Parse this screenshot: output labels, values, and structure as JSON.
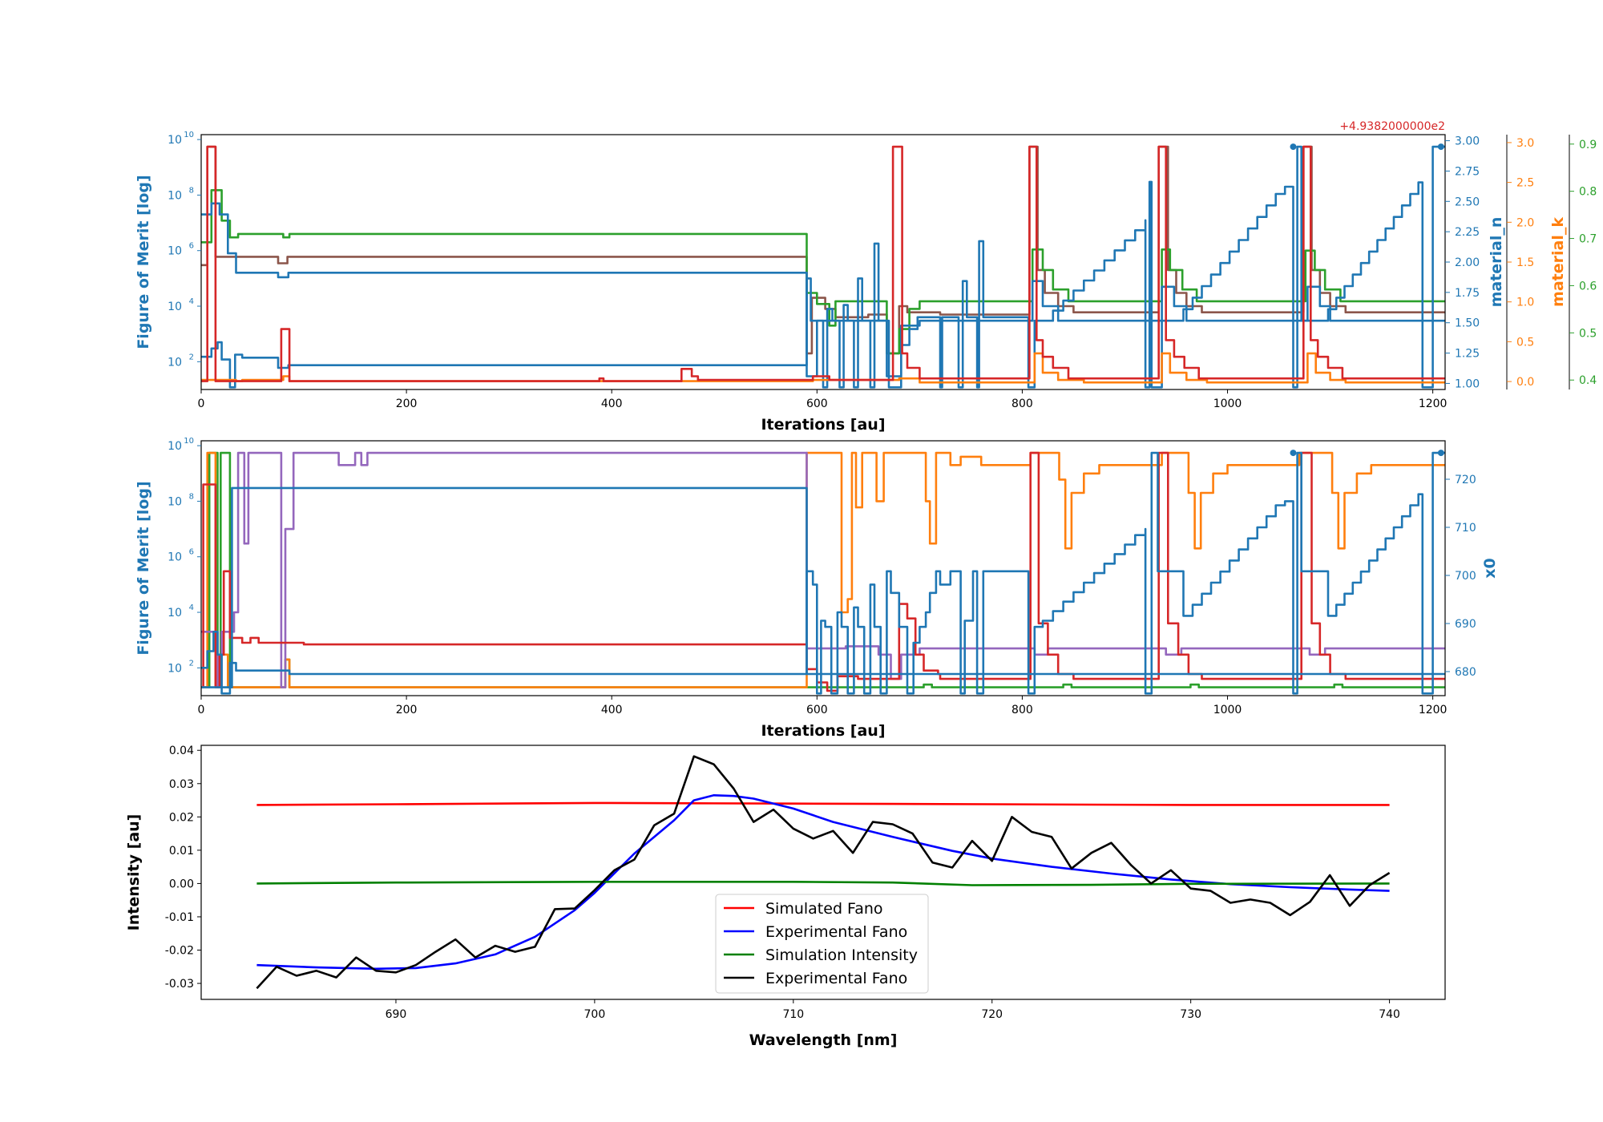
{
  "colors": {
    "blue": "#1f77b4",
    "orange": "#ff7f0e",
    "green": "#2ca02c",
    "red": "#d62728",
    "purple": "#9467bd",
    "brown": "#8c564b",
    "pure_red": "#ff0000",
    "pure_blue": "#0000ff",
    "dark_green": "#008000",
    "black": "#000000"
  },
  "chart_data": [
    {
      "type": "line",
      "step": true,
      "xlabel": "Iterations [au]",
      "ylabel": "Figure of Merit [log]",
      "xlim": [
        0,
        1212
      ],
      "ylim_log": [
        10.0,
        15000000000.0
      ],
      "yscale": "log",
      "xticks": [
        0,
        200,
        400,
        600,
        800,
        1000,
        1200
      ],
      "yticks_log_exp": [
        2,
        4,
        6,
        8,
        10
      ],
      "offset_text": "+4.9382000000e2",
      "right_axes": [
        {
          "label": "material_n",
          "color": "blue",
          "range": [
            0.95,
            3.05
          ],
          "ticks": [
            "1.00",
            "1.25",
            "1.50",
            "1.75",
            "2.00",
            "2.25",
            "2.50",
            "2.75",
            "3.00"
          ],
          "tick_values": [
            1.0,
            1.25,
            1.5,
            1.75,
            2.0,
            2.25,
            2.5,
            2.75,
            3.0
          ]
        },
        {
          "label": "material_k",
          "color": "orange",
          "range": [
            -0.1,
            3.1
          ],
          "ticks": [
            "0.0",
            "0.5",
            "1.0",
            "1.5",
            "2.0",
            "2.5",
            "3.0"
          ],
          "tick_values": [
            0,
            0.5,
            1.0,
            1.5,
            2.0,
            2.5,
            3.0
          ]
        },
        {
          "label": "",
          "color": "green",
          "range": [
            0.38,
            0.92
          ],
          "ticks": [
            "0.4",
            "0.5",
            "0.6",
            "0.7",
            "0.8",
            "0.9"
          ],
          "tick_values": [
            0.4,
            0.5,
            0.6,
            0.7,
            0.8,
            0.9
          ]
        }
      ]
    },
    {
      "type": "line",
      "step": true,
      "xlabel": "Iterations [au]",
      "ylabel": "Figure of Merit [log]",
      "xlim": [
        0,
        1212
      ],
      "ylim_log": [
        10.0,
        15000000000.0
      ],
      "yscale": "log",
      "xticks": [
        0,
        200,
        400,
        600,
        800,
        1000,
        1200
      ],
      "yticks_log_exp": [
        2,
        4,
        6,
        8,
        10
      ],
      "right_axes": [
        {
          "label": "x0",
          "color": "blue",
          "range": [
            675,
            728
          ],
          "ticks": [
            "680",
            "690",
            "700",
            "710",
            "720"
          ],
          "tick_values": [
            680,
            690,
            700,
            710,
            720
          ]
        }
      ]
    },
    {
      "type": "line",
      "xlabel": "Wavelength [nm]",
      "ylabel": "Intensity [au]",
      "xlim": [
        680.2,
        742.8
      ],
      "ylim": [
        -0.0348,
        0.0415
      ],
      "xticks": [
        690,
        700,
        710,
        720,
        730,
        740
      ],
      "yticks": [
        "-0.03",
        "-0.02",
        "-0.01",
        "0.00",
        "0.01",
        "0.02",
        "0.03",
        "0.04"
      ],
      "ytick_values": [
        -0.03,
        -0.02,
        -0.01,
        0.0,
        0.01,
        0.02,
        0.03,
        0.04
      ],
      "legend_position": "lower-center",
      "series": [
        {
          "name": "Simulated Fano",
          "color": "pure_red",
          "x": [
            683,
            690,
            695,
            700,
            705,
            710,
            715,
            720,
            725,
            730,
            735,
            740
          ],
          "y": [
            0.0236,
            0.0238,
            0.024,
            0.0242,
            0.0241,
            0.024,
            0.0239,
            0.0238,
            0.0237,
            0.0236,
            0.0236,
            0.0236
          ]
        },
        {
          "name": "Experimental Fano",
          "color": "pure_blue",
          "x": [
            683,
            686,
            689,
            691,
            693,
            695,
            697,
            699,
            700,
            702,
            704,
            705,
            706,
            707,
            708,
            710,
            712,
            715,
            718,
            720,
            723,
            726,
            729,
            732,
            735,
            738,
            740
          ],
          "y": [
            -0.0245,
            -0.0252,
            -0.0256,
            -0.0254,
            -0.024,
            -0.0213,
            -0.016,
            -0.008,
            -0.0028,
            0.009,
            0.019,
            0.025,
            0.0265,
            0.0263,
            0.0255,
            0.0225,
            0.0185,
            0.014,
            0.0098,
            0.0075,
            0.005,
            0.003,
            0.0012,
            -0.0002,
            -0.0011,
            -0.0018,
            -0.0022
          ]
        },
        {
          "name": "Simulation Intensity",
          "color": "dark_green",
          "x": [
            683,
            690,
            700,
            710,
            715,
            719,
            725,
            730,
            740
          ],
          "y": [
            0.0,
            0.0003,
            0.0005,
            0.0005,
            0.0003,
            -0.0005,
            -0.0004,
            -0.0001,
            0.0
          ]
        },
        {
          "name": "Experimental Fano",
          "color": "black",
          "x": [
            683,
            684,
            685,
            686,
            687,
            688,
            689,
            690,
            691,
            692,
            693,
            694,
            695,
            696,
            697,
            698,
            699,
            700,
            701,
            702,
            703,
            704,
            705,
            706,
            707,
            708,
            709,
            710,
            711,
            712,
            713,
            714,
            715,
            716,
            717,
            718,
            719,
            720,
            721,
            722,
            723,
            724,
            725,
            726,
            727,
            728,
            729,
            730,
            731,
            732,
            733,
            734,
            735,
            736,
            737,
            738,
            739,
            740
          ],
          "y": [
            -0.0315,
            -0.025,
            -0.0277,
            -0.0262,
            -0.0282,
            -0.0222,
            -0.0262,
            -0.0267,
            -0.0245,
            -0.0205,
            -0.0168,
            -0.0222,
            -0.0187,
            -0.0205,
            -0.019,
            -0.0077,
            -0.0075,
            -0.002,
            0.004,
            0.0072,
            0.0175,
            0.021,
            0.0382,
            0.0358,
            0.0285,
            0.0185,
            0.0222,
            0.0165,
            0.0135,
            0.0158,
            0.0092,
            0.0185,
            0.0178,
            0.015,
            0.0063,
            0.0048,
            0.0128,
            0.0068,
            0.02,
            0.0155,
            0.014,
            0.0045,
            0.0092,
            0.0122,
            0.0055,
            0.0,
            0.004,
            -0.0015,
            -0.0022,
            -0.0058,
            -0.0048,
            -0.0058,
            -0.0095,
            -0.0055,
            0.0025,
            -0.0067,
            -0.0005,
            0.0032
          ]
        }
      ]
    }
  ]
}
